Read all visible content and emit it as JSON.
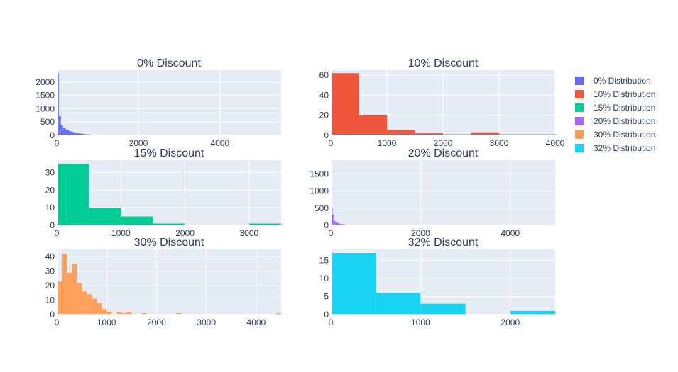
{
  "chart_data": [
    {
      "type": "bar",
      "title": "0% Discount",
      "series_name": "0% Distribution",
      "color": "#636efa",
      "bin_width": 50,
      "values": [
        2330,
        720,
        380,
        290,
        230,
        190,
        160,
        140,
        120,
        100,
        85,
        70,
        60,
        50,
        40,
        35,
        30,
        25,
        20,
        18,
        15,
        12,
        10,
        8,
        6,
        5,
        20,
        0,
        0,
        0,
        0,
        0,
        25,
        0,
        0,
        18,
        0,
        0,
        0,
        0,
        0,
        0,
        0,
        0,
        0,
        0,
        0,
        0,
        0,
        0,
        0,
        0,
        0,
        0,
        0,
        0,
        0,
        0,
        0,
        0,
        0,
        0,
        0,
        0,
        0,
        0,
        0,
        0,
        0,
        0,
        0,
        0,
        0,
        0,
        0,
        0,
        0,
        0,
        0,
        0,
        0,
        0,
        0,
        0,
        0,
        0,
        0,
        0,
        0,
        0,
        0,
        0,
        0,
        0,
        0,
        0,
        0,
        0,
        0,
        0,
        0,
        0,
        0,
        0,
        0,
        0,
        0,
        5
      ],
      "xlim": [
        0,
        5500
      ],
      "ylim": [
        0,
        2450
      ],
      "xticks": [
        0,
        2000,
        4000
      ],
      "yticks": [
        0,
        500,
        1000,
        1500,
        2000
      ]
    },
    {
      "type": "bar",
      "title": "10% Discount",
      "series_name": "10% Distribution",
      "color": "#ef553b",
      "bin_width": 500,
      "values": [
        62,
        20,
        5,
        2,
        1,
        3,
        1,
        1
      ],
      "xlim": [
        0,
        4000
      ],
      "ylim": [
        0,
        65
      ],
      "xticks": [
        0,
        1000,
        2000,
        3000,
        4000
      ],
      "yticks": [
        0,
        20,
        40,
        60
      ]
    },
    {
      "type": "bar",
      "title": "15% Discount",
      "series_name": "15% Distribution",
      "color": "#00cc96",
      "bin_width": 500,
      "values": [
        35,
        10,
        5,
        1,
        0,
        0,
        1
      ],
      "xlim": [
        0,
        3500
      ],
      "ylim": [
        0,
        37
      ],
      "xticks": [
        0,
        1000,
        2000,
        3000
      ],
      "yticks": [
        0,
        10,
        20,
        30
      ]
    },
    {
      "type": "bar",
      "title": "20% Discount",
      "series_name": "20% Distribution",
      "color": "#ab63fa",
      "bin_width": 20,
      "values": [
        1800,
        520,
        300,
        180,
        130,
        100,
        85,
        70,
        60,
        50,
        45,
        40,
        35,
        30,
        28,
        25,
        22,
        20,
        18,
        16,
        14,
        12,
        10,
        9,
        8,
        7,
        6,
        5,
        5,
        4,
        4,
        3,
        3,
        3,
        3,
        2
      ],
      "xlim": [
        0,
        5000
      ],
      "ylim": [
        0,
        1900
      ],
      "xticks": [
        0,
        2000,
        4000
      ],
      "yticks": [
        0,
        500,
        1000,
        1500
      ]
    },
    {
      "type": "bar",
      "title": "30% Discount",
      "series_name": "30% Distribution",
      "color": "#ffa15a",
      "bin_width": 100,
      "values": [
        23,
        42,
        29,
        35,
        22,
        16,
        14,
        11,
        8,
        4,
        2,
        0,
        2,
        1,
        2,
        0,
        0,
        1,
        0,
        0,
        0,
        0,
        0,
        0,
        1,
        0,
        0,
        0,
        0,
        0,
        0,
        0,
        0,
        0,
        0,
        0,
        0,
        0,
        0,
        0,
        0,
        0,
        0,
        0,
        1
      ],
      "xlim": [
        0,
        4500
      ],
      "ylim": [
        0,
        45
      ],
      "xticks": [
        0,
        1000,
        2000,
        3000,
        4000
      ],
      "yticks": [
        0,
        10,
        20,
        30,
        40
      ]
    },
    {
      "type": "bar",
      "title": "32% Discount",
      "series_name": "32% Distribution",
      "color": "#19d3f3",
      "bin_width": 500,
      "values": [
        17,
        6,
        3,
        0,
        1
      ],
      "xlim": [
        0,
        2500
      ],
      "ylim": [
        0,
        18
      ],
      "xticks": [
        0,
        1000,
        2000
      ],
      "yticks": [
        0,
        5,
        10,
        15
      ]
    }
  ],
  "legend": {
    "placement": "right",
    "items": [
      {
        "label": "0% Distribution",
        "color": "#636efa"
      },
      {
        "label": "10% Distribution",
        "color": "#ef553b"
      },
      {
        "label": "15% Distribution",
        "color": "#00cc96"
      },
      {
        "label": "20% Distribution",
        "color": "#ab63fa"
      },
      {
        "label": "30% Distribution",
        "color": "#ffa15a"
      },
      {
        "label": "32% Distribution",
        "color": "#19d3f3"
      }
    ]
  }
}
